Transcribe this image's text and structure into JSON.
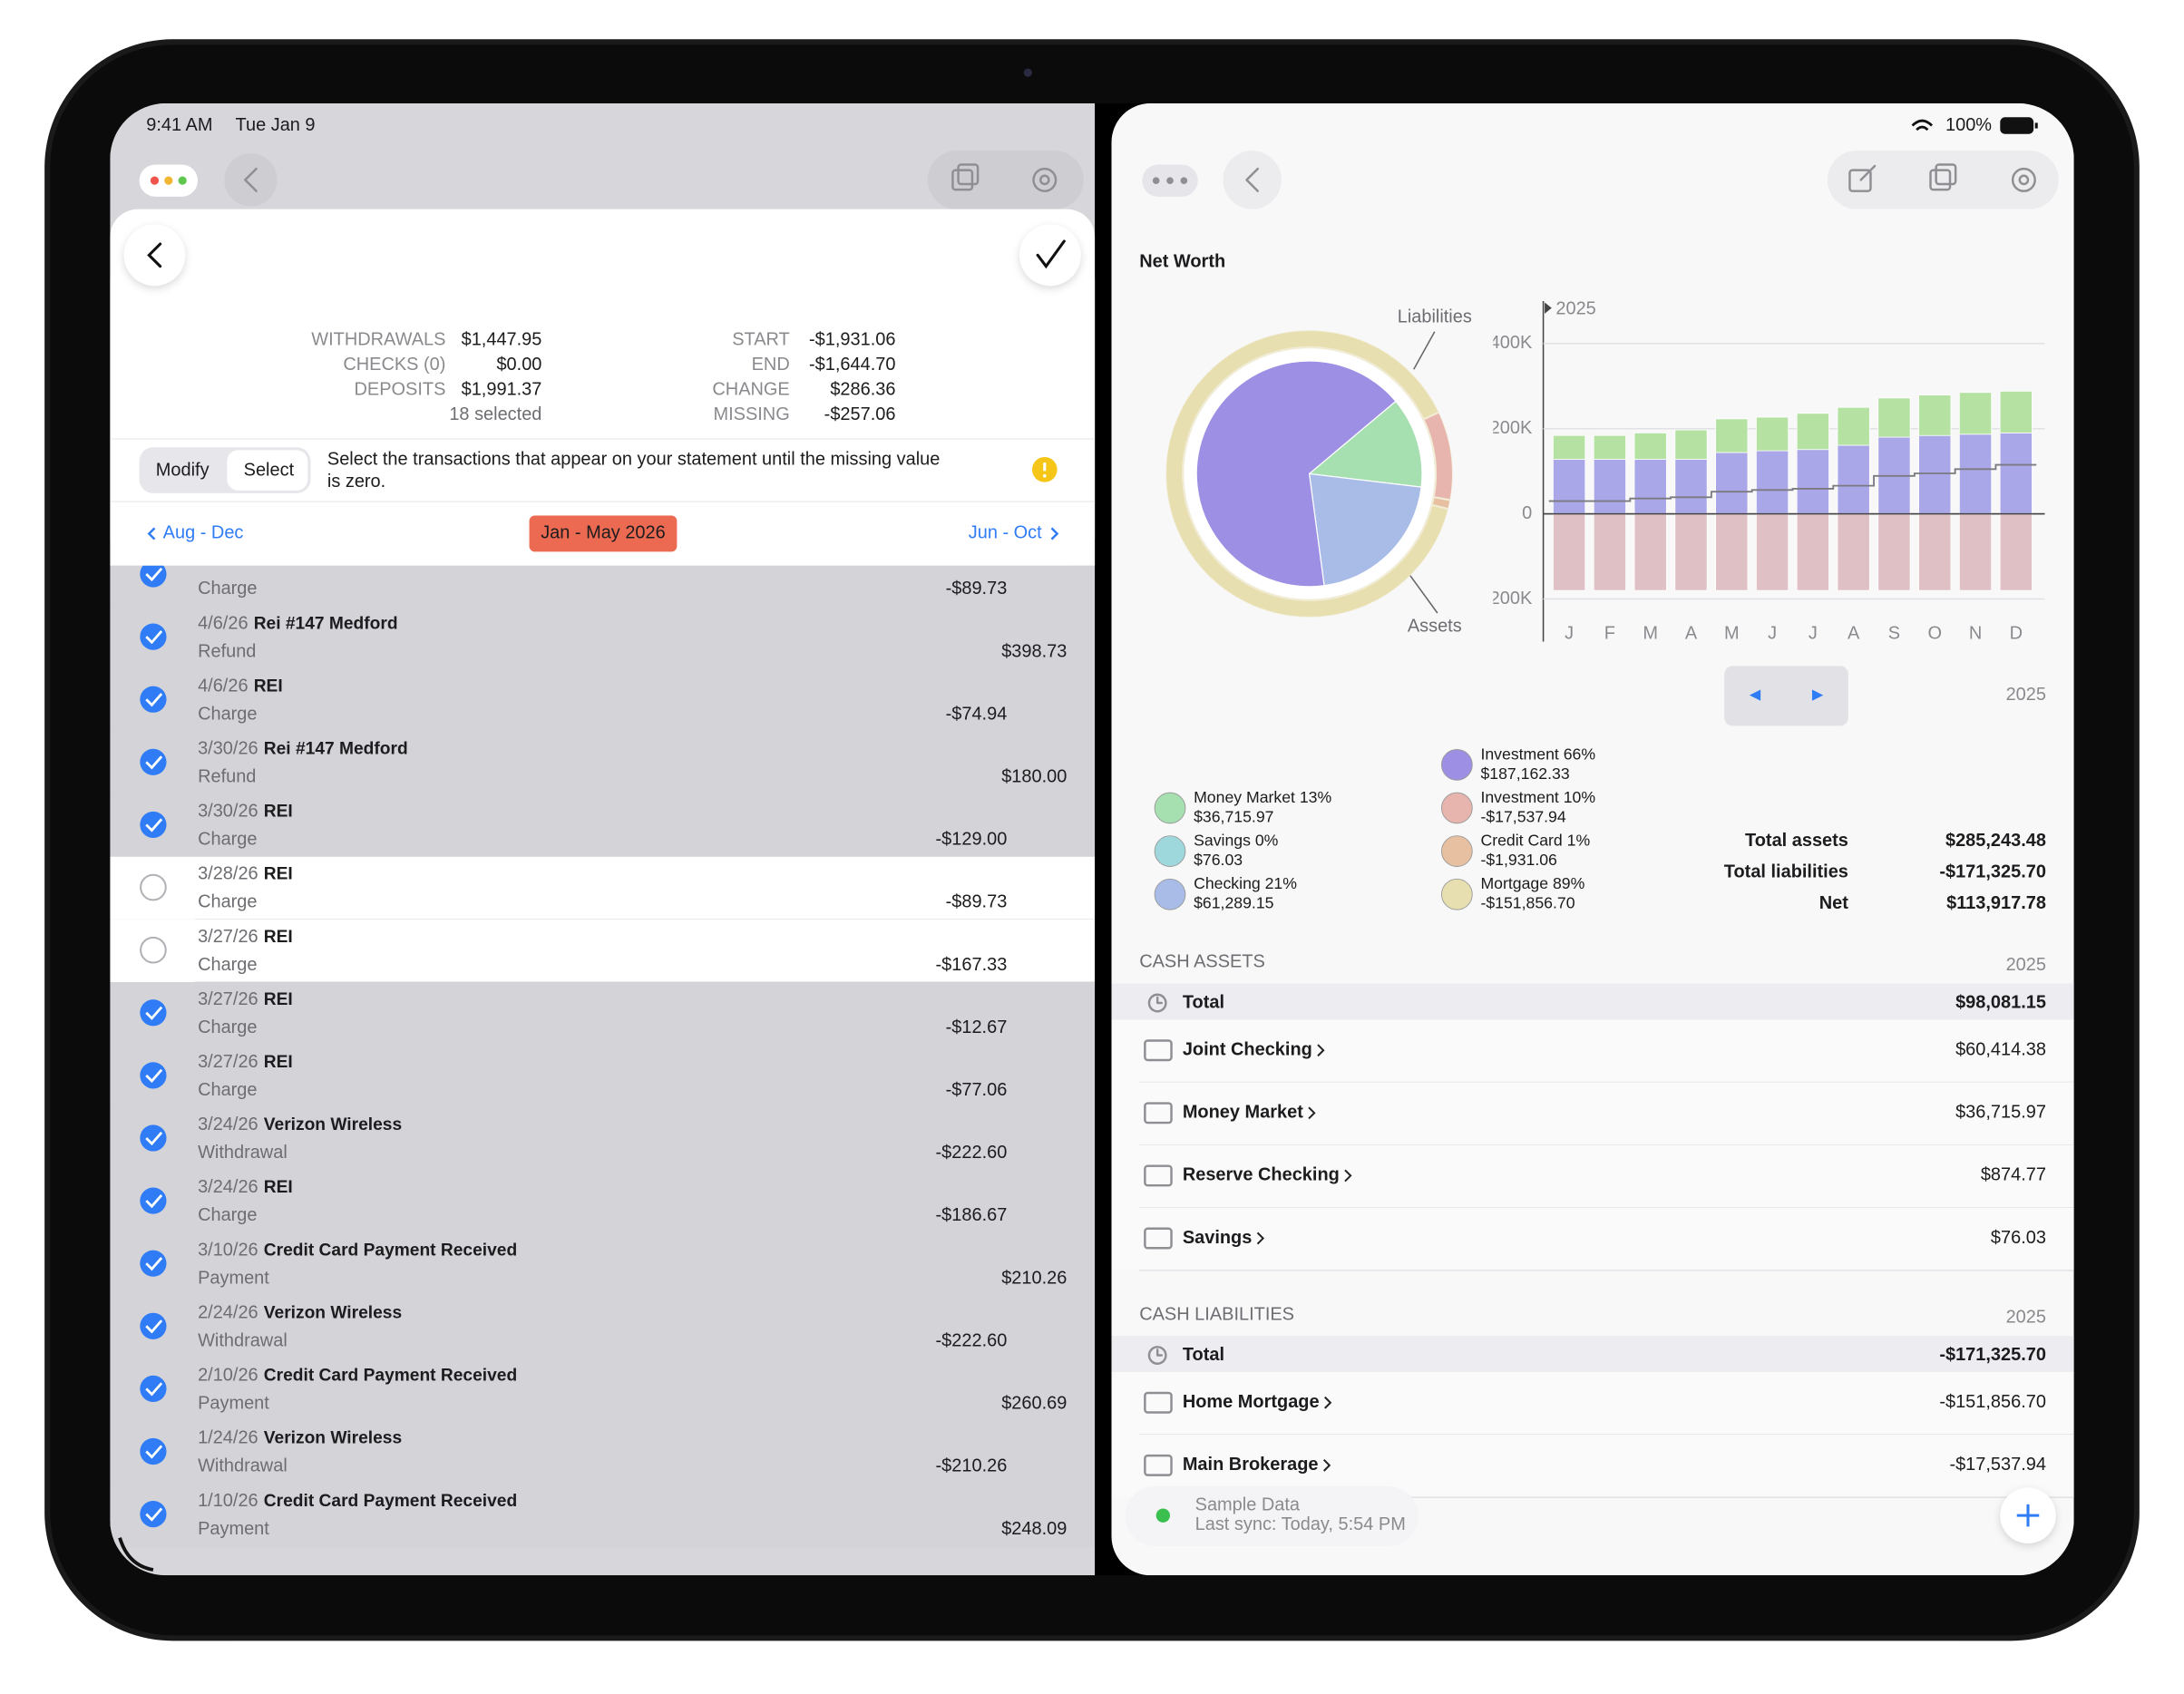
{
  "status": {
    "time": "9:41 AM",
    "date": "Tue Jan 9",
    "battery": "100%"
  },
  "statement": {
    "left": [
      {
        "label": "WITHDRAWALS",
        "value": "$1,447.95"
      },
      {
        "label": "CHECKS (0)",
        "value": "$0.00"
      },
      {
        "label": "DEPOSITS",
        "value": "$1,991.37"
      }
    ],
    "selected": "18 selected",
    "right": [
      {
        "label": "START",
        "value": "-$1,931.06"
      },
      {
        "label": "END",
        "value": "-$1,644.70"
      },
      {
        "label": "CHANGE",
        "value": "$286.36"
      },
      {
        "label": "MISSING",
        "value": "-$257.06"
      }
    ]
  },
  "segments": [
    "Modify",
    "Select"
  ],
  "hint": [
    "Select the transactions that appear on your statement until the missing value",
    "is zero."
  ],
  "periods": {
    "prev": "Aug - Dec",
    "current": "Jan - May 2026",
    "next": "Jun - Oct"
  },
  "transactions": [
    {
      "type": "Charge",
      "amount": "-$89.73",
      "checked": true
    },
    {
      "date": "4/6/26",
      "payee": "Rei #147 Medford",
      "type": "Refund",
      "amount": "$398.73",
      "checked": true
    },
    {
      "date": "4/6/26",
      "payee": "REI",
      "type": "Charge",
      "amount": "-$74.94",
      "checked": true
    },
    {
      "date": "3/30/26",
      "payee": "Rei #147 Medford",
      "type": "Refund",
      "amount": "$180.00",
      "checked": true
    },
    {
      "date": "3/30/26",
      "payee": "REI",
      "type": "Charge",
      "amount": "-$129.00",
      "checked": true
    },
    {
      "date": "3/28/26",
      "payee": "REI",
      "type": "Charge",
      "amount": "-$89.73",
      "checked": false
    },
    {
      "date": "3/27/26",
      "payee": "REI",
      "type": "Charge",
      "amount": "-$167.33",
      "checked": false
    },
    {
      "date": "3/27/26",
      "payee": "REI",
      "type": "Charge",
      "amount": "-$12.67",
      "checked": true
    },
    {
      "date": "3/27/26",
      "payee": "REI",
      "type": "Charge",
      "amount": "-$77.06",
      "checked": true
    },
    {
      "date": "3/24/26",
      "payee": "Verizon Wireless",
      "type": "Withdrawal",
      "amount": "-$222.60",
      "checked": true
    },
    {
      "date": "3/24/26",
      "payee": "REI",
      "type": "Charge",
      "amount": "-$186.67",
      "checked": true
    },
    {
      "date": "3/10/26",
      "payee": "Credit Card Payment Received",
      "type": "Payment",
      "amount": "$210.26",
      "checked": true
    },
    {
      "date": "2/24/26",
      "payee": "Verizon Wireless",
      "type": "Withdrawal",
      "amount": "-$222.60",
      "checked": true
    },
    {
      "date": "2/10/26",
      "payee": "Credit Card Payment Received",
      "type": "Payment",
      "amount": "$260.69",
      "checked": true
    },
    {
      "date": "1/24/26",
      "payee": "Verizon Wireless",
      "type": "Withdrawal",
      "amount": "-$210.26",
      "checked": true
    },
    {
      "date": "1/10/26",
      "payee": "Credit Card Payment Received",
      "type": "Payment",
      "amount": "$248.09",
      "checked": true
    }
  ],
  "title": "Net Worth",
  "pie": {
    "assets_label": "Assets",
    "liabilities_label": "Liabilities",
    "assets": [
      {
        "label": "Money Market 13%",
        "percent": 13,
        "amount": "$36,715.97",
        "color": "#a6dfb0"
      },
      {
        "label": "Savings 0%",
        "percent": 0,
        "amount": "$76.03",
        "color": "#9fd8dc"
      },
      {
        "label": "Checking 21%",
        "percent": 21,
        "amount": "$61,289.15",
        "color": "#a9bce8"
      },
      {
        "label": "Investment 66%",
        "percent": 66,
        "amount": "$187,162.33",
        "color": "#9d8fe3"
      }
    ],
    "liabilities": [
      {
        "label": "Investment 10%",
        "percent": 10,
        "amount": "-$17,537.94",
        "color": "#e7b5ae"
      },
      {
        "label": "Credit Card 1%",
        "percent": 1,
        "amount": "-$1,931.06",
        "color": "#e6c0a0"
      },
      {
        "label": "Mortgage 89%",
        "percent": 89,
        "amount": "-$151,856.70",
        "color": "#e8dfb0"
      }
    ]
  },
  "chart_data": {
    "type": "bar",
    "stacked": true,
    "year": "2025",
    "categories": [
      "J",
      "F",
      "M",
      "A",
      "M",
      "J",
      "J",
      "A",
      "S",
      "O",
      "N",
      "D"
    ],
    "series": [
      {
        "color": "#aaa7e8",
        "values": [
          128,
          128,
          128,
          128,
          144,
          148,
          151,
          161,
          180,
          184,
          187,
          190
        ]
      },
      {
        "color": "#b5e2a2",
        "values": [
          56,
          56,
          62,
          69,
          79,
          79,
          85,
          89,
          92,
          95,
          98,
          98
        ]
      },
      {
        "color": "#dfc0c4",
        "values": [
          -180,
          -180,
          -180,
          -180,
          -180,
          -180,
          -180,
          -180,
          -180,
          -180,
          -180,
          -180
        ]
      }
    ],
    "line": {
      "color": "#7a7a80",
      "values": [
        30,
        30,
        36,
        39,
        52,
        56,
        59,
        66,
        89,
        95,
        105,
        115
      ]
    },
    "ylim": [
      -300,
      480
    ],
    "yticks": [
      {
        "value": 400,
        "label": "400K"
      },
      {
        "value": 200,
        "label": "200K"
      },
      0,
      {
        "value": -200,
        "label": "200K"
      }
    ],
    "grid": true
  },
  "pager_year": "2025",
  "totals": [
    {
      "label": "Total assets",
      "value": "$285,243.48"
    },
    {
      "label": "Total liabilities",
      "value": "-$171,325.70"
    },
    {
      "label": "Net",
      "value": "$113,917.78"
    }
  ],
  "cash_assets": {
    "heading": "CASH ASSETS",
    "year": "2025",
    "total_label": "Total",
    "total": "$98,081.15",
    "rows": [
      {
        "name": "Joint Checking",
        "value": "$60,414.38"
      },
      {
        "name": "Money Market",
        "value": "$36,715.97"
      },
      {
        "name": "Reserve Checking",
        "value": "$874.77"
      },
      {
        "name": "Savings",
        "value": "$76.03"
      }
    ]
  },
  "cash_liabilities": {
    "heading": "CASH LIABILITIES",
    "year": "2025",
    "total_label": "Total",
    "total": "-$171,325.70",
    "rows": [
      {
        "name": "Home Mortgage",
        "value": "-$151,856.70"
      },
      {
        "name": "Main Brokerage",
        "value": "-$17,537.94"
      }
    ]
  },
  "sync": {
    "name": "Sample Data",
    "detail": "Last sync: Today, 5:54 PM"
  }
}
